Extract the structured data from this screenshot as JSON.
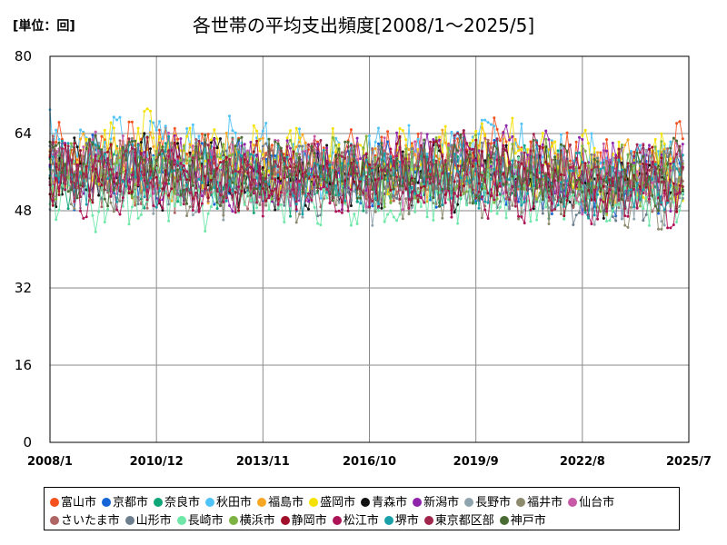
{
  "header": {
    "unit": "[単位：回]",
    "title": "各世帯の平均支出頻度[2008/1～2025/5]"
  },
  "chart_data": {
    "type": "line",
    "title": "各世帯の平均支出頻度[2008/1～2025/5]",
    "unit_label": "[単位：回]",
    "x_range": [
      "2008/1",
      "2025/7"
    ],
    "x_ticks": [
      "2008/1",
      "2010/12",
      "2013/11",
      "2016/10",
      "2019/9",
      "2022/8",
      "2025/7"
    ],
    "y_range": [
      0,
      80
    ],
    "y_ticks": [
      "0",
      "16",
      "32",
      "48",
      "64",
      "80"
    ],
    "grid": true,
    "legend_position": "bottom",
    "markers": true,
    "series": [
      {
        "name": "富山市",
        "color": "#f4511e",
        "values_by_year": {
          "2008": 58,
          "2011": 60,
          "2014": 58,
          "2017": 58,
          "2020": 60,
          "2023": 56,
          "2025": 59
        }
      },
      {
        "name": "京都市",
        "color": "#1565d8",
        "values_by_year": {
          "2008": 56,
          "2011": 56,
          "2014": 55,
          "2017": 55,
          "2020": 56,
          "2023": 53,
          "2025": 55
        }
      },
      {
        "name": "奈良市",
        "color": "#0ea678",
        "values_by_year": {
          "2008": 55,
          "2011": 56,
          "2014": 55,
          "2017": 54,
          "2020": 55,
          "2023": 52,
          "2025": 54
        }
      },
      {
        "name": "秋田市",
        "color": "#4fc3f7",
        "values_by_year": {
          "2008": 62,
          "2011": 61,
          "2014": 59,
          "2017": 58,
          "2020": 62,
          "2023": 57,
          "2025": 58
        }
      },
      {
        "name": "福島市",
        "color": "#f5a623",
        "values_by_year": {
          "2008": 57,
          "2011": 57,
          "2014": 57,
          "2017": 57,
          "2020": 58,
          "2023": 55,
          "2025": 56
        }
      },
      {
        "name": "盛岡市",
        "color": "#f5e100",
        "values_by_year": {
          "2008": 58,
          "2011": 62,
          "2014": 58,
          "2017": 58,
          "2020": 60,
          "2023": 57,
          "2025": 57
        }
      },
      {
        "name": "青森市",
        "color": "#111111",
        "values_by_year": {
          "2008": 56,
          "2011": 56,
          "2014": 55,
          "2017": 55,
          "2020": 56,
          "2023": 53,
          "2025": 54
        }
      },
      {
        "name": "新潟市",
        "color": "#8e24aa",
        "values_by_year": {
          "2008": 57,
          "2011": 56,
          "2014": 56,
          "2017": 56,
          "2020": 58,
          "2023": 57,
          "2025": 56
        }
      },
      {
        "name": "長野市",
        "color": "#90a4ae",
        "values_by_year": {
          "2008": 55,
          "2011": 54,
          "2014": 53,
          "2017": 53,
          "2020": 55,
          "2023": 52,
          "2025": 53
        }
      },
      {
        "name": "福井市",
        "color": "#8d8a6e",
        "values_by_year": {
          "2008": 55,
          "2011": 55,
          "2014": 54,
          "2017": 53,
          "2020": 54,
          "2023": 51,
          "2025": 52
        }
      },
      {
        "name": "仙台市",
        "color": "#c75aa6",
        "values_by_year": {
          "2008": 57,
          "2011": 57,
          "2014": 56,
          "2017": 56,
          "2020": 57,
          "2023": 54,
          "2025": 55
        }
      },
      {
        "name": "さいたま市",
        "color": "#b06565",
        "values_by_year": {
          "2008": 56,
          "2011": 55,
          "2014": 55,
          "2017": 55,
          "2020": 56,
          "2023": 53,
          "2025": 54
        }
      },
      {
        "name": "山形市",
        "color": "#6d7f8f",
        "values_by_year": {
          "2008": 55,
          "2011": 55,
          "2014": 54,
          "2017": 54,
          "2020": 55,
          "2023": 52,
          "2025": 53
        }
      },
      {
        "name": "長崎市",
        "color": "#6ee7a8",
        "values_by_year": {
          "2008": 52,
          "2011": 51,
          "2014": 51,
          "2017": 51,
          "2020": 53,
          "2023": 50,
          "2025": 52
        }
      },
      {
        "name": "横浜市",
        "color": "#7cb342",
        "values_by_year": {
          "2008": 57,
          "2011": 57,
          "2014": 56,
          "2017": 56,
          "2020": 57,
          "2023": 54,
          "2025": 55
        }
      },
      {
        "name": "静岡市",
        "color": "#a0102a",
        "values_by_year": {
          "2008": 56,
          "2011": 56,
          "2014": 55,
          "2017": 55,
          "2020": 56,
          "2023": 54,
          "2025": 55
        }
      },
      {
        "name": "松江市",
        "color": "#ad1457",
        "values_by_year": {
          "2008": 54,
          "2011": 54,
          "2014": 53,
          "2017": 54,
          "2020": 54,
          "2023": 51,
          "2025": 52
        }
      },
      {
        "name": "堺市",
        "color": "#1aa0a8",
        "values_by_year": {
          "2008": 56,
          "2011": 56,
          "2014": 55,
          "2017": 55,
          "2020": 56,
          "2023": 53,
          "2025": 54
        }
      },
      {
        "name": "東京都区部",
        "color": "#a0264d",
        "values_by_year": {
          "2008": 57,
          "2011": 57,
          "2014": 57,
          "2017": 57,
          "2020": 57,
          "2023": 55,
          "2025": 56
        }
      },
      {
        "name": "神戸市",
        "color": "#4a6b34",
        "values_by_year": {
          "2008": 57,
          "2011": 57,
          "2014": 56,
          "2017": 56,
          "2020": 57,
          "2023": 54,
          "2025": 55
        }
      }
    ]
  }
}
